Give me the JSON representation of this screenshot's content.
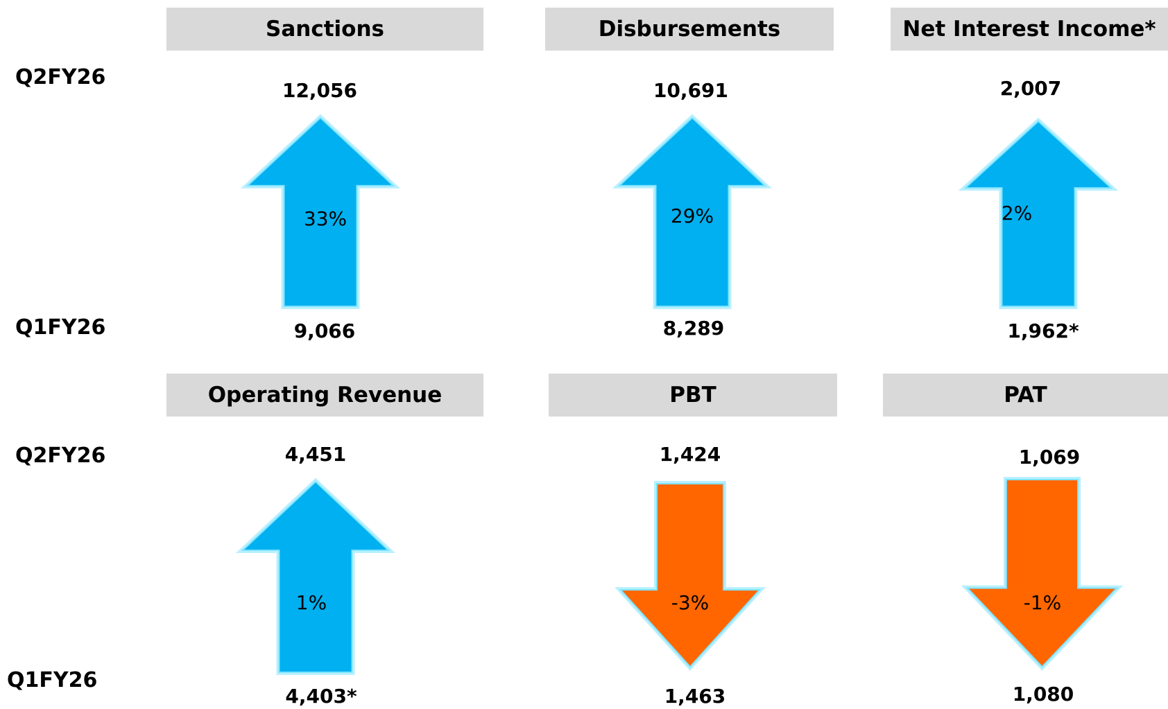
{
  "row_labels": {
    "top_current": "Q2FY26",
    "top_previous": "Q1FY26",
    "bottom_current": "Q2FY26",
    "bottom_previous": "Q1FY26"
  },
  "colors": {
    "up": "#00b0f0",
    "down": "#ff6600",
    "glow": "#7fe3ff",
    "header_bg": "#d9d9d9"
  },
  "metrics": [
    {
      "name": "Sanctions",
      "current": "12,056",
      "previous": "9,066",
      "change": "33%",
      "direction": "up",
      "icon": "arrow-up-icon"
    },
    {
      "name": "Disbursements",
      "current": "10,691",
      "previous": "8,289",
      "change": "29%",
      "direction": "up",
      "icon": "arrow-up-icon"
    },
    {
      "name": "Net Interest Income*",
      "current": "2,007",
      "previous": "1,962*",
      "change": "2%",
      "direction": "up",
      "icon": "arrow-up-icon"
    },
    {
      "name": "Operating Revenue",
      "current": "4,451",
      "previous": "4,403*",
      "change": "1%",
      "direction": "up",
      "icon": "arrow-up-icon"
    },
    {
      "name": "PBT",
      "current": "1,424",
      "previous": "1,463",
      "change": "-3%",
      "direction": "down",
      "icon": "arrow-down-icon"
    },
    {
      "name": "PAT",
      "current": "1,069",
      "previous": "1,080",
      "change": "-1%",
      "direction": "down",
      "icon": "arrow-down-icon"
    }
  ]
}
